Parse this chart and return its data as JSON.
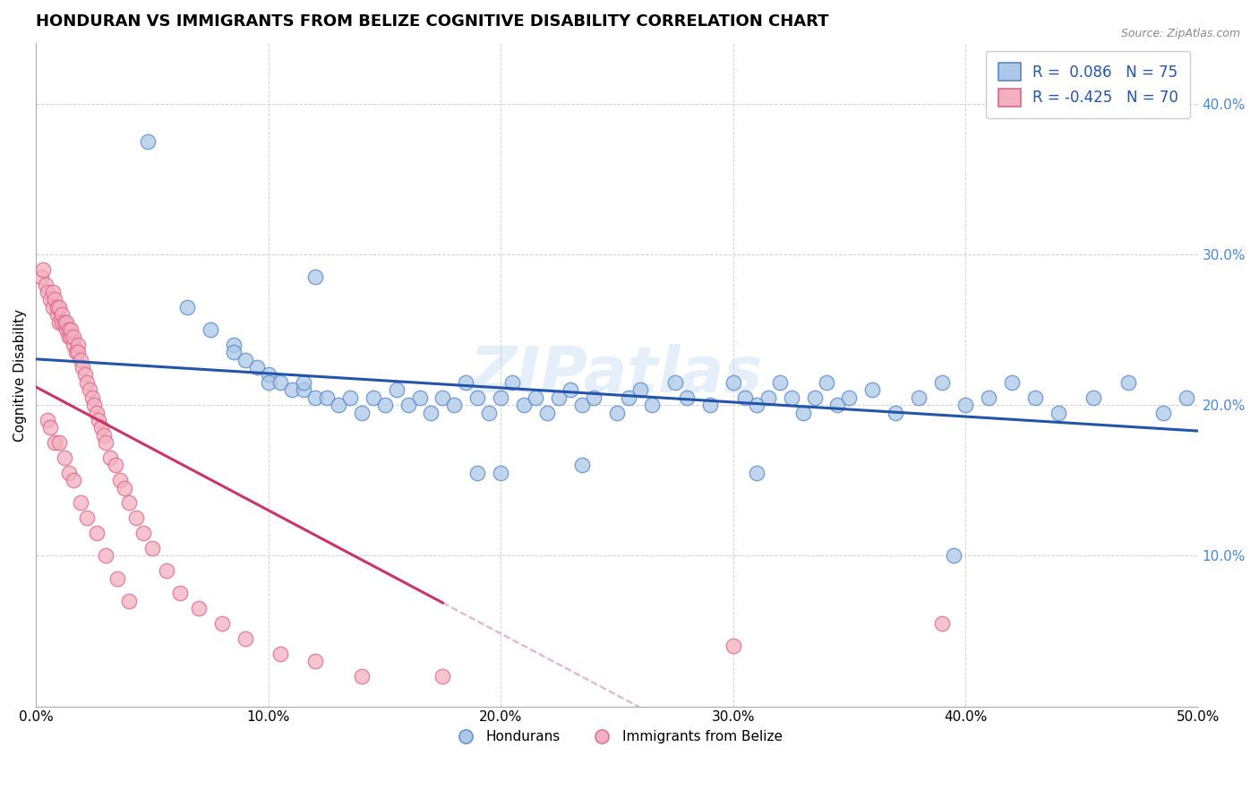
{
  "title": "HONDURAN VS IMMIGRANTS FROM BELIZE COGNITIVE DISABILITY CORRELATION CHART",
  "source": "Source: ZipAtlas.com",
  "xlabel": "",
  "ylabel": "Cognitive Disability",
  "xlim": [
    0.0,
    0.5
  ],
  "ylim": [
    0.0,
    0.44
  ],
  "xticks": [
    0.0,
    0.1,
    0.2,
    0.3,
    0.4,
    0.5
  ],
  "xticklabels": [
    "0.0%",
    "10.0%",
    "20.0%",
    "30.0%",
    "40.0%",
    "50.0%"
  ],
  "yticks": [
    0.1,
    0.2,
    0.3,
    0.4
  ],
  "yticklabels": [
    "10.0%",
    "20.0%",
    "30.0%",
    "40.0%"
  ],
  "legend_labels": [
    "Hondurans",
    "Immigrants from Belize"
  ],
  "blue_R": 0.086,
  "blue_N": 75,
  "pink_R": -0.425,
  "pink_N": 70,
  "blue_color": "#adc8e8",
  "blue_edge_color": "#5588cc",
  "blue_line_color": "#2255aa",
  "pink_color": "#f4b0c0",
  "pink_edge_color": "#dd6688",
  "pink_line_color": "#cc3366",
  "watermark": "ZIPatlas",
  "title_fontsize": 13,
  "axis_fontsize": 11,
  "tick_fontsize": 11,
  "right_tick_color": "#4488dd",
  "blue_scatter_x": [
    0.048,
    0.12,
    0.065,
    0.075,
    0.085,
    0.085,
    0.09,
    0.095,
    0.1,
    0.1,
    0.105,
    0.11,
    0.115,
    0.115,
    0.12,
    0.125,
    0.13,
    0.135,
    0.14,
    0.145,
    0.15,
    0.155,
    0.16,
    0.165,
    0.17,
    0.175,
    0.18,
    0.185,
    0.19,
    0.195,
    0.2,
    0.205,
    0.21,
    0.215,
    0.22,
    0.225,
    0.23,
    0.235,
    0.24,
    0.25,
    0.255,
    0.26,
    0.265,
    0.275,
    0.28,
    0.29,
    0.3,
    0.305,
    0.31,
    0.315,
    0.32,
    0.325,
    0.33,
    0.335,
    0.34,
    0.345,
    0.35,
    0.36,
    0.37,
    0.38,
    0.39,
    0.4,
    0.41,
    0.42,
    0.43,
    0.44,
    0.455,
    0.47,
    0.485,
    0.495,
    0.19,
    0.2,
    0.235,
    0.31,
    0.395
  ],
  "blue_scatter_y": [
    0.375,
    0.285,
    0.265,
    0.25,
    0.24,
    0.235,
    0.23,
    0.225,
    0.22,
    0.215,
    0.215,
    0.21,
    0.21,
    0.215,
    0.205,
    0.205,
    0.2,
    0.205,
    0.195,
    0.205,
    0.2,
    0.21,
    0.2,
    0.205,
    0.195,
    0.205,
    0.2,
    0.215,
    0.205,
    0.195,
    0.205,
    0.215,
    0.2,
    0.205,
    0.195,
    0.205,
    0.21,
    0.2,
    0.205,
    0.195,
    0.205,
    0.21,
    0.2,
    0.215,
    0.205,
    0.2,
    0.215,
    0.205,
    0.2,
    0.205,
    0.215,
    0.205,
    0.195,
    0.205,
    0.215,
    0.2,
    0.205,
    0.21,
    0.195,
    0.205,
    0.215,
    0.2,
    0.205,
    0.215,
    0.205,
    0.195,
    0.205,
    0.215,
    0.195,
    0.205,
    0.155,
    0.155,
    0.16,
    0.155,
    0.1
  ],
  "pink_scatter_x": [
    0.002,
    0.003,
    0.004,
    0.005,
    0.006,
    0.007,
    0.007,
    0.008,
    0.009,
    0.009,
    0.01,
    0.01,
    0.011,
    0.011,
    0.012,
    0.013,
    0.013,
    0.014,
    0.014,
    0.015,
    0.015,
    0.016,
    0.016,
    0.017,
    0.018,
    0.018,
    0.019,
    0.02,
    0.021,
    0.022,
    0.023,
    0.024,
    0.025,
    0.026,
    0.027,
    0.028,
    0.029,
    0.03,
    0.032,
    0.034,
    0.036,
    0.038,
    0.04,
    0.043,
    0.046,
    0.05,
    0.056,
    0.062,
    0.07,
    0.08,
    0.09,
    0.105,
    0.12,
    0.14,
    0.175,
    0.005,
    0.006,
    0.008,
    0.01,
    0.012,
    0.014,
    0.016,
    0.019,
    0.022,
    0.026,
    0.03,
    0.035,
    0.04,
    0.3,
    0.39
  ],
  "pink_scatter_y": [
    0.285,
    0.29,
    0.28,
    0.275,
    0.27,
    0.275,
    0.265,
    0.27,
    0.26,
    0.265,
    0.255,
    0.265,
    0.255,
    0.26,
    0.255,
    0.25,
    0.255,
    0.245,
    0.25,
    0.245,
    0.25,
    0.24,
    0.245,
    0.235,
    0.24,
    0.235,
    0.23,
    0.225,
    0.22,
    0.215,
    0.21,
    0.205,
    0.2,
    0.195,
    0.19,
    0.185,
    0.18,
    0.175,
    0.165,
    0.16,
    0.15,
    0.145,
    0.135,
    0.125,
    0.115,
    0.105,
    0.09,
    0.075,
    0.065,
    0.055,
    0.045,
    0.035,
    0.03,
    0.02,
    0.02,
    0.19,
    0.185,
    0.175,
    0.175,
    0.165,
    0.155,
    0.15,
    0.135,
    0.125,
    0.115,
    0.1,
    0.085,
    0.07,
    0.04,
    0.055
  ]
}
